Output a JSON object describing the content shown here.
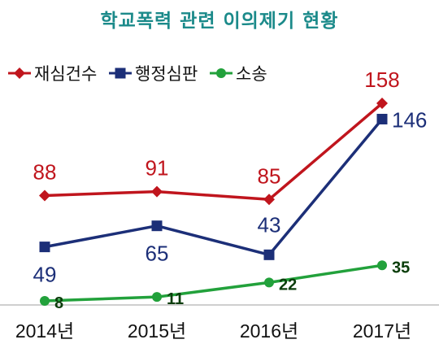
{
  "chart_data": {
    "type": "line",
    "title": "학교폭력  관련 이의제기 현황",
    "categories": [
      "2014년",
      "2015년",
      "2016년",
      "2017년"
    ],
    "series": [
      {
        "name": "재심건수",
        "values": [
          88,
          91,
          85,
          158
        ],
        "color": "#c0151d",
        "marker": "diamond"
      },
      {
        "name": "행정심판",
        "values": [
          49,
          65,
          43,
          146
        ],
        "color": "#1c2f78",
        "marker": "square"
      },
      {
        "name": "소송",
        "values": [
          8,
          11,
          22,
          35
        ],
        "color": "#22a13b",
        "marker": "circle",
        "label_color": "#0b3d0b"
      }
    ],
    "legend": "top-left",
    "grid": false
  }
}
